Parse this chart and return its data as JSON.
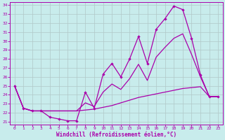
{
  "xlabel": "Windchill (Refroidissement éolien,°C)",
  "background_color": "#c8ecec",
  "grid_color": "#b0c8c8",
  "line_color": "#aa00aa",
  "xlim": [
    -0.5,
    23.5
  ],
  "ylim": [
    20.7,
    34.3
  ],
  "xticks": [
    0,
    1,
    2,
    3,
    4,
    5,
    6,
    7,
    8,
    9,
    10,
    11,
    12,
    13,
    14,
    15,
    16,
    17,
    18,
    19,
    20,
    21,
    22,
    23
  ],
  "yticks": [
    21,
    22,
    23,
    24,
    25,
    26,
    27,
    28,
    29,
    30,
    31,
    32,
    33,
    34
  ],
  "hours": [
    0,
    1,
    2,
    3,
    4,
    5,
    6,
    7,
    8,
    9,
    10,
    11,
    12,
    13,
    14,
    15,
    16,
    17,
    18,
    19,
    20,
    21,
    22,
    23
  ],
  "temp": [
    25.0,
    22.5,
    22.2,
    22.2,
    21.5,
    21.3,
    21.1,
    21.1,
    24.3,
    22.5,
    26.3,
    27.5,
    26.0,
    28.0,
    30.5,
    27.5,
    31.3,
    32.5,
    33.9,
    33.5,
    30.3,
    26.2,
    23.8,
    23.8
  ],
  "windchill": [
    25.0,
    22.5,
    22.2,
    22.2,
    22.2,
    22.2,
    22.2,
    22.2,
    22.3,
    22.4,
    22.6,
    22.8,
    23.1,
    23.4,
    23.7,
    23.9,
    24.1,
    24.3,
    24.5,
    24.7,
    24.8,
    24.9,
    23.8,
    23.8
  ],
  "apparent": [
    25.0,
    22.5,
    22.2,
    22.2,
    22.2,
    22.2,
    22.2,
    22.2,
    23.1,
    22.7,
    24.3,
    25.2,
    24.6,
    25.8,
    27.4,
    25.6,
    28.2,
    29.3,
    30.3,
    30.8,
    28.5,
    26.0,
    23.8,
    23.8
  ]
}
